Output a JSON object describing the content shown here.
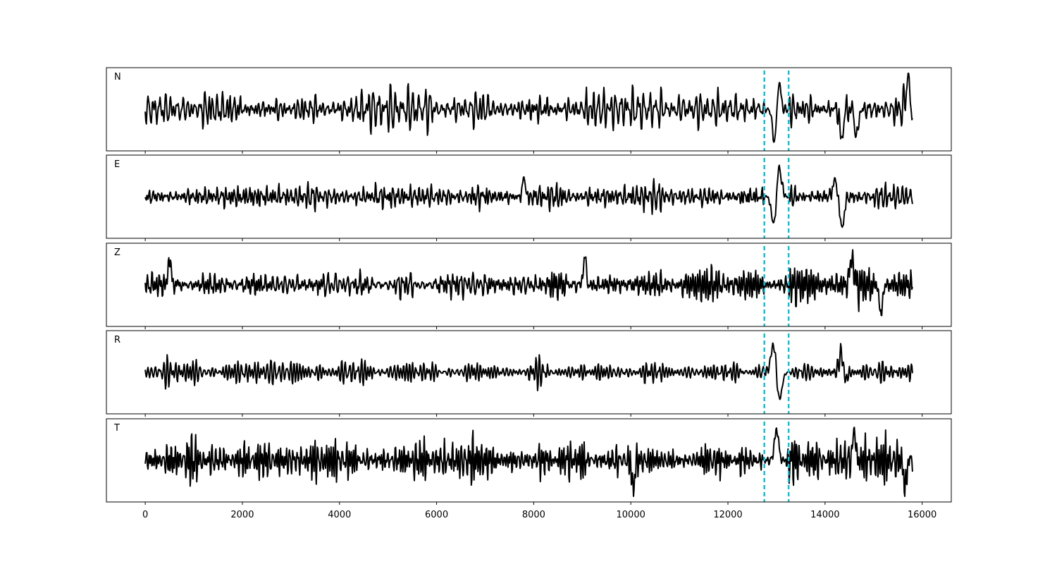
{
  "chart_data": {
    "type": "line",
    "title": "",
    "xlabel": "",
    "ylabel": "",
    "xlim": [
      -800,
      16600
    ],
    "x_ticks": [
      0,
      2000,
      4000,
      6000,
      8000,
      10000,
      12000,
      14000,
      16000
    ],
    "x_tick_labels": [
      "0",
      "2000",
      "4000",
      "6000",
      "8000",
      "10000",
      "12000",
      "14000",
      "16000"
    ],
    "signal_range": [
      0,
      15800
    ],
    "markers": [
      12750,
      13250
    ],
    "marker_color": "#17becf",
    "line_color": "#000000",
    "grid": false,
    "panels": [
      {
        "label": "N",
        "seed": 11,
        "base_amp": 0.55,
        "events": [
          {
            "x": 12960,
            "amp": -0.9,
            "width": 60
          },
          {
            "x": 13050,
            "amp": 0.85,
            "width": 50
          },
          {
            "x": 14340,
            "amp": -0.85,
            "width": 50
          },
          {
            "x": 14650,
            "amp": -0.8,
            "width": 50
          },
          {
            "x": 15700,
            "amp": 0.9,
            "width": 50
          }
        ]
      },
      {
        "label": "E",
        "seed": 23,
        "base_amp": 0.35,
        "events": [
          {
            "x": 12950,
            "amp": -0.85,
            "width": 70
          },
          {
            "x": 13050,
            "amp": 0.88,
            "width": 70
          },
          {
            "x": 14350,
            "amp": -0.88,
            "width": 60
          },
          {
            "x": 14200,
            "amp": 0.45,
            "width": 60
          },
          {
            "x": 7800,
            "amp": 0.55,
            "width": 40
          }
        ]
      },
      {
        "label": "Z",
        "seed": 37,
        "base_amp": 0.5,
        "events": [
          {
            "x": 500,
            "amp": 0.75,
            "width": 40
          },
          {
            "x": 15150,
            "amp": -0.9,
            "width": 40
          },
          {
            "x": 14550,
            "amp": 0.75,
            "width": 50
          },
          {
            "x": 9050,
            "amp": 0.8,
            "width": 40
          }
        ]
      },
      {
        "label": "R",
        "seed": 51,
        "base_amp": 0.3,
        "events": [
          {
            "x": 12950,
            "amp": 0.9,
            "width": 80
          },
          {
            "x": 13050,
            "amp": -0.88,
            "width": 80
          },
          {
            "x": 14350,
            "amp": 0.7,
            "width": 70
          },
          {
            "x": 14400,
            "amp": -0.5,
            "width": 60
          }
        ]
      },
      {
        "label": "T",
        "seed": 73,
        "base_amp": 0.55,
        "events": [
          {
            "x": 13000,
            "amp": 0.85,
            "width": 60
          },
          {
            "x": 10050,
            "amp": -0.85,
            "width": 40
          },
          {
            "x": 14600,
            "amp": 0.9,
            "width": 40
          },
          {
            "x": 15650,
            "amp": -0.8,
            "width": 40
          }
        ]
      }
    ]
  }
}
